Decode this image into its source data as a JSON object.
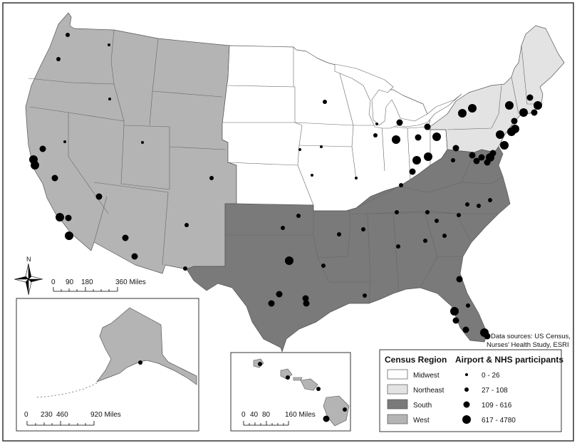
{
  "regions": {
    "midwest": {
      "label": "Midwest",
      "color": "#ffffff"
    },
    "northeast": {
      "label": "Northeast",
      "color": "#e3e3e3"
    },
    "south": {
      "label": "South",
      "color": "#7a7a7a"
    },
    "west": {
      "label": "West",
      "color": "#b4b4b4"
    }
  },
  "legend": {
    "region_title": "Census Region",
    "airport_title": "Airport & NHS participants",
    "sizes": [
      {
        "label": "0 - 26"
      },
      {
        "label": "27 - 108"
      },
      {
        "label": "109 - 616"
      },
      {
        "label": "617 - 4780"
      }
    ]
  },
  "source": {
    "line1": "Data sources: US Census,",
    "line2": "Nurses' Health Study, ESRI"
  },
  "north_label": "N",
  "scales": {
    "main": {
      "ticks": [
        "0",
        "90",
        "180",
        "360 Miles"
      ]
    },
    "alaska": {
      "ticks": [
        "0",
        "230",
        "460",
        "920 Miles"
      ]
    },
    "hawaii": {
      "ticks": [
        "0",
        "40",
        "80",
        "160 Miles"
      ]
    }
  }
}
